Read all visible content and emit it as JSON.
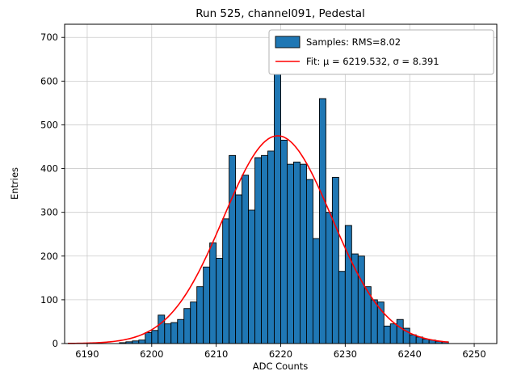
{
  "chart_data": {
    "type": "bar",
    "subtype": "histogram",
    "title": "Run 525, channel091, Pedestal",
    "xlabel": "ADC Counts",
    "ylabel": "Entries",
    "xlim": [
      6186.5,
      6253.5
    ],
    "ylim": [
      0,
      730
    ],
    "x_ticks": [
      6190,
      6200,
      6210,
      6220,
      6230,
      6240,
      6250
    ],
    "y_ticks": [
      0,
      100,
      200,
      300,
      400,
      500,
      600,
      700
    ],
    "grid": true,
    "bin_start": 6195,
    "bin_width": 1,
    "counts": [
      2,
      4,
      6,
      8,
      25,
      30,
      65,
      45,
      48,
      55,
      80,
      95,
      130,
      175,
      230,
      195,
      285,
      430,
      340,
      385,
      305,
      425,
      430,
      440,
      630,
      465,
      410,
      415,
      410,
      375,
      240,
      560,
      300,
      380,
      165,
      270,
      205,
      200,
      130,
      100,
      95,
      40,
      45,
      55,
      35,
      20,
      15,
      10,
      8,
      5,
      4
    ],
    "bar_color": "#1f77b4",
    "bar_edge_color": "#000000",
    "fit": {
      "type": "gaussian",
      "mu": 6219.532,
      "sigma": 8.391,
      "amplitude": 475,
      "color": "#ff0000",
      "x_range": [
        6187,
        6246
      ]
    },
    "legend": {
      "position": "upper right",
      "entries": [
        {
          "label": "Samples: RMS=8.02",
          "marker": "patch",
          "color": "#1f77b4"
        },
        {
          "label": "Fit: μ = 6219.532, σ = 8.391",
          "marker": "line",
          "color": "#ff0000"
        }
      ]
    }
  }
}
